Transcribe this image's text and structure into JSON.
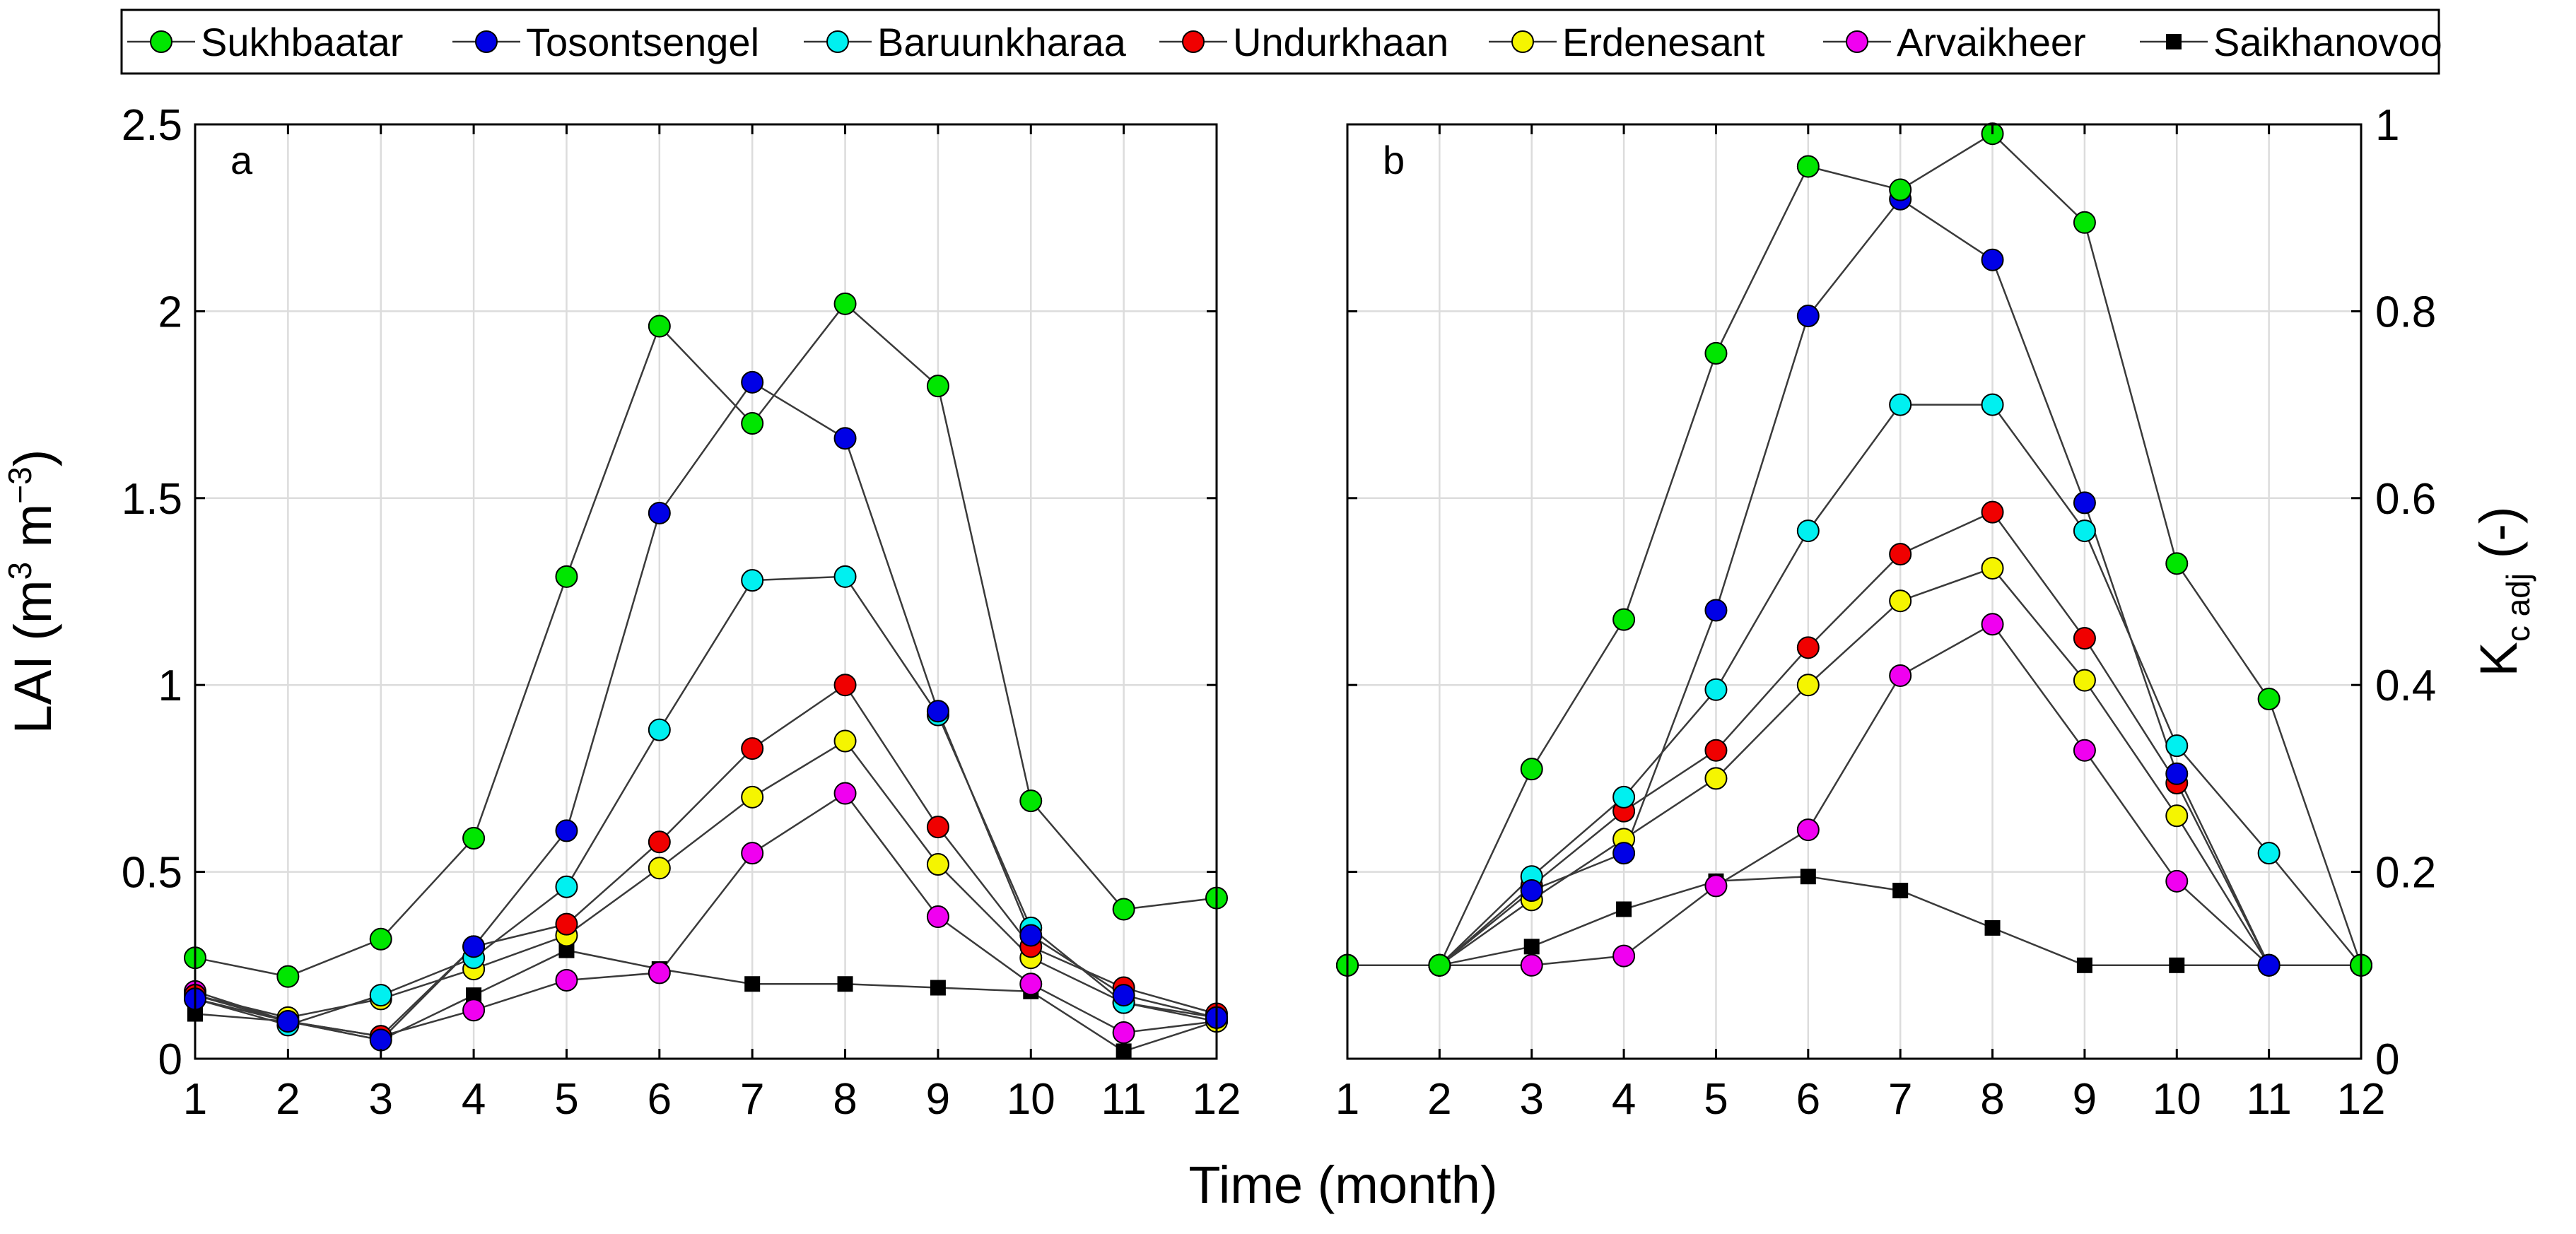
{
  "chart_data": [
    {
      "type": "line",
      "panel_label": "a",
      "x": [
        1,
        2,
        3,
        4,
        5,
        6,
        7,
        8,
        9,
        10,
        11,
        12
      ],
      "xlabel": "Time (month)",
      "ylabel": "LAI (m",
      "ylabel_sup1": "3",
      "ylabel_mid": " m",
      "ylabel_sup2": "−3",
      "ylabel_end": ")",
      "xlim": [
        1,
        12
      ],
      "ylim": [
        0,
        2.5
      ],
      "yticks": [
        0,
        0.5,
        1,
        1.5,
        2,
        2.5
      ],
      "ytick_labels": [
        "0",
        "0.5",
        "1",
        "1.5",
        "2",
        "2.5"
      ],
      "xtick_labels": [
        "1",
        "2",
        "3",
        "4",
        "5",
        "6",
        "7",
        "8",
        "9",
        "10",
        "11",
        "12"
      ],
      "grid": true,
      "series": [
        {
          "name": "Sukhbaatar",
          "values": [
            0.27,
            0.22,
            0.32,
            0.59,
            1.29,
            1.96,
            1.7,
            2.02,
            1.8,
            0.69,
            0.4,
            0.43
          ]
        },
        {
          "name": "Tosontsengel",
          "values": [
            0.16,
            0.1,
            0.05,
            0.3,
            0.61,
            1.46,
            1.81,
            1.66,
            0.93,
            0.33,
            0.17,
            0.11
          ]
        },
        {
          "name": "Baruunkharaa",
          "values": [
            0.16,
            0.09,
            0.17,
            0.27,
            0.46,
            0.88,
            1.28,
            1.29,
            0.92,
            0.35,
            0.15,
            0.11
          ]
        },
        {
          "name": "Undurkhaan",
          "values": [
            0.17,
            0.1,
            0.06,
            0.3,
            0.36,
            0.58,
            0.83,
            1.0,
            0.62,
            0.3,
            0.19,
            0.12
          ]
        },
        {
          "name": "Erdenesant",
          "values": [
            0.17,
            0.11,
            0.16,
            0.24,
            0.33,
            0.51,
            0.7,
            0.85,
            0.52,
            0.27,
            0.15,
            0.1
          ]
        },
        {
          "name": "Arvaikheer",
          "values": [
            0.18,
            0.1,
            0.06,
            0.13,
            0.21,
            0.23,
            0.55,
            0.71,
            0.38,
            0.2,
            0.07,
            0.1
          ]
        },
        {
          "name": "Saikhanovoo",
          "values": [
            0.12,
            0.1,
            0.05,
            0.17,
            0.29,
            0.24,
            0.2,
            0.2,
            0.19,
            0.18,
            0.02,
            0.1
          ]
        }
      ]
    },
    {
      "type": "line",
      "panel_label": "b",
      "x": [
        1,
        2,
        3,
        4,
        5,
        6,
        7,
        8,
        9,
        10,
        11,
        12
      ],
      "xlabel": "Time (month)",
      "ylabel": "K",
      "ylabel_sub": "c adj",
      "ylabel_end": " (-)",
      "xlim": [
        1,
        12
      ],
      "ylim": [
        0,
        1
      ],
      "yticks": [
        0,
        0.2,
        0.4,
        0.6,
        0.8,
        1
      ],
      "ytick_labels": [
        "0",
        "0.2",
        "0.4",
        "0.6",
        "0.8",
        "1"
      ],
      "xtick_labels": [
        "1",
        "2",
        "3",
        "4",
        "5",
        "6",
        "7",
        "8",
        "9",
        "10",
        "11",
        "12"
      ],
      "grid": true,
      "y_axis_side": "right",
      "series": [
        {
          "name": "Sukhbaatar",
          "values": [
            0.1,
            0.1,
            0.31,
            0.47,
            0.755,
            0.955,
            0.93,
            0.99,
            0.895,
            0.53,
            0.385,
            0.1
          ]
        },
        {
          "name": "Tosontsengel",
          "values": [
            0.1,
            0.1,
            0.18,
            0.22,
            0.48,
            0.795,
            0.92,
            0.855,
            0.595,
            0.305,
            0.1,
            0.1
          ]
        },
        {
          "name": "Baruunkharaa",
          "values": [
            0.1,
            0.1,
            0.195,
            0.28,
            0.395,
            0.565,
            0.7,
            0.7,
            0.565,
            0.335,
            0.22,
            0.1
          ]
        },
        {
          "name": "Undurkhaan",
          "values": [
            0.1,
            0.1,
            0.185,
            0.265,
            0.33,
            0.44,
            0.54,
            0.585,
            0.45,
            0.295,
            0.1,
            0.1
          ]
        },
        {
          "name": "Erdenesant",
          "values": [
            0.1,
            0.1,
            0.17,
            0.235,
            0.3,
            0.4,
            0.49,
            0.525,
            0.405,
            0.26,
            0.1,
            0.1
          ]
        },
        {
          "name": "Arvaikheer",
          "values": [
            0.1,
            0.1,
            0.1,
            0.11,
            0.185,
            0.245,
            0.41,
            0.465,
            0.33,
            0.19,
            0.1,
            0.1
          ]
        },
        {
          "name": "Saikhanovoo",
          "values": [
            0.1,
            0.1,
            0.12,
            0.16,
            0.19,
            0.195,
            0.18,
            0.14,
            0.1,
            0.1,
            0.1,
            0.1
          ]
        }
      ]
    }
  ],
  "legend": {
    "placement": "top",
    "items": [
      {
        "name": "Sukhbaatar",
        "color": "#00e600",
        "marker": "circle"
      },
      {
        "name": "Tosontsengel",
        "color": "#0000e6",
        "marker": "circle"
      },
      {
        "name": "Baruunkharaa",
        "color": "#00f0f0",
        "marker": "circle"
      },
      {
        "name": "Undurkhaan",
        "color": "#f00000",
        "marker": "circle"
      },
      {
        "name": "Erdenesant",
        "color": "#f5f500",
        "marker": "circle"
      },
      {
        "name": "Arvaikheer",
        "color": "#f000f0",
        "marker": "circle"
      },
      {
        "name": "Saikhanovoo",
        "color": "#000000",
        "marker": "square"
      }
    ]
  }
}
